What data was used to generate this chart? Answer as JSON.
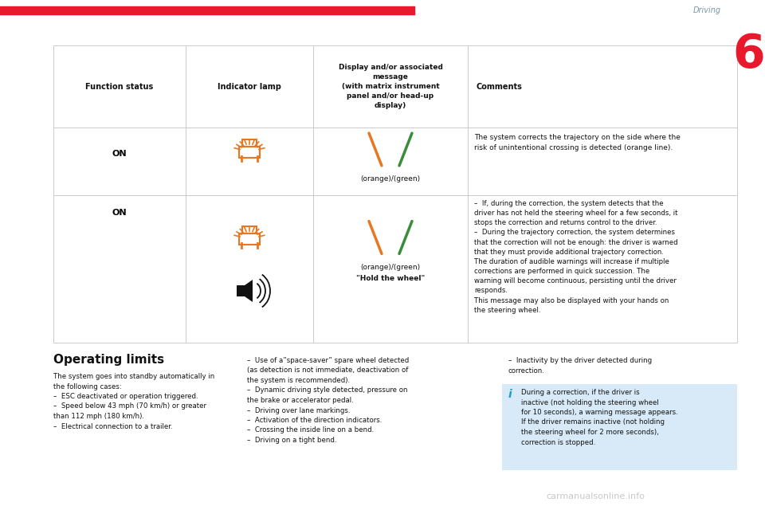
{
  "page_title": "Driving",
  "page_number": "6",
  "bg_color": "#ffffff",
  "orange_color": "#e87722",
  "green_color": "#3a8c3a",
  "text_color": "#000000",
  "gray_text": "#8899aa",
  "red_color": "#e8192c",
  "info_bg": "#ddeeff",
  "info_blue": "#2299cc",
  "table_border": "#cccccc",
  "header_cols": [
    "Function status",
    "Indicator lamp",
    "Display and/or associated\nmessage\n(with matrix instrument\npanel and/or head-up\ndisplay)",
    "Comments"
  ],
  "row1_comment": "The system corrects the trajectory on the side where the\nrisk of unintentional crossing is detected (orange line).",
  "row2_comment": "–  If, during the correction, the system detects that the\ndriver has not held the steering wheel for a few seconds, it\nstops the correction and returns control to the driver.\n–  During the trajectory correction, the system determines\nthat the correction will not be enough: the driver is warned\nthat they must provide additional trajectory correction.\nThe duration of audible warnings will increase if multiple\ncorrections are performed in quick succession. The\nwarning will become continuous, persisting until the driver\nresponds.\nThis message may also be displayed with your hands on\nthe steering wheel.",
  "operating_limits_title": "Operating limits",
  "col1_text": "The system goes into standby automatically in\nthe following cases:\n–  ESC deactivated or operation triggered.\n–  Speed below 43 mph (70 km/h) or greater\nthan 112 mph (180 km/h).\n–  Electrical connection to a trailer.",
  "col2_text": "–  Use of a”space-saver” spare wheel detected\n(as detection is not immediate, deactivation of\nthe system is recommended).\n–  Dynamic driving style detected, pressure on\nthe brake or accelerator pedal.\n–  Driving over lane markings.\n–  Activation of the direction indicators.\n–  Crossing the inside line on a bend.\n–  Driving on a tight bend.",
  "col3_text": "–  Inactivity by the driver detected during\ncorrection.",
  "info_box_text": "During a correction, if the driver is\ninactive (not holding the steering wheel\nfor 10 seconds), a warning message appears.\nIf the driver remains inactive (not holding\nthe steering wheel for 2 more seconds),\ncorrection is stopped."
}
